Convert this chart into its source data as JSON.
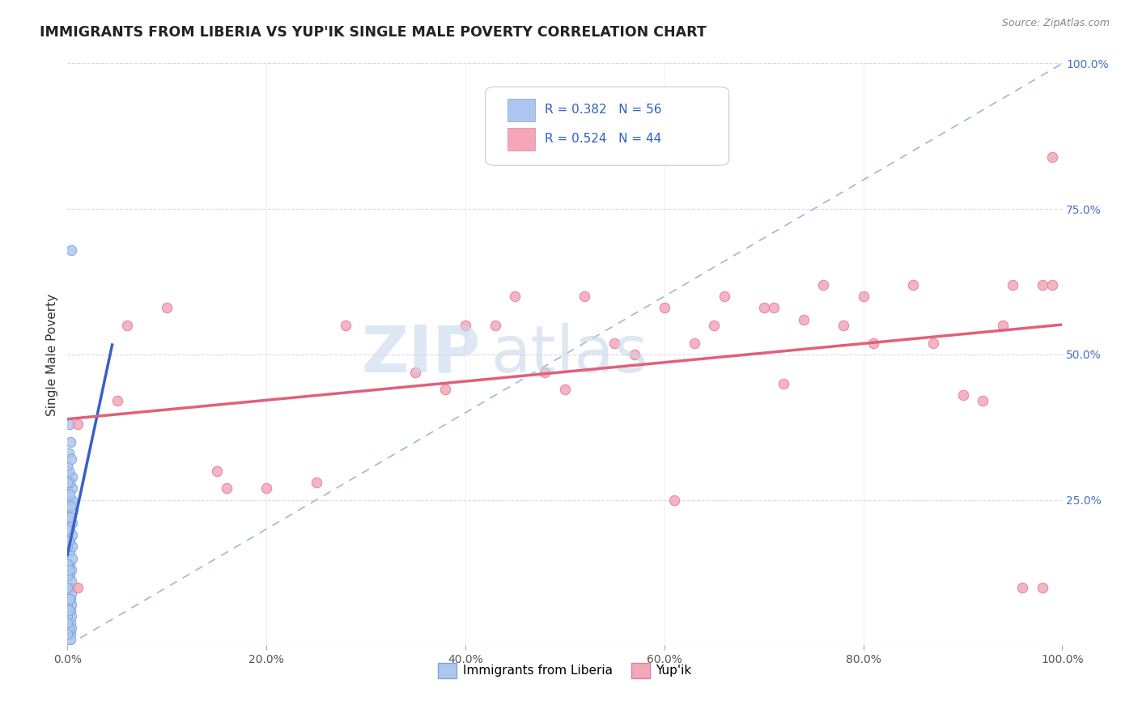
{
  "title": "IMMIGRANTS FROM LIBERIA VS YUP'IK SINGLE MALE POVERTY CORRELATION CHART",
  "source": "Source: ZipAtlas.com",
  "ylabel": "Single Male Poverty",
  "xlim": [
    0,
    1
  ],
  "ylim": [
    0,
    1
  ],
  "liberia_scatter": [
    [
      0.0,
      0.27
    ],
    [
      0.001,
      0.25
    ],
    [
      0.001,
      0.22
    ],
    [
      0.002,
      0.2
    ],
    [
      0.002,
      0.18
    ],
    [
      0.002,
      0.16
    ],
    [
      0.002,
      0.14
    ],
    [
      0.002,
      0.12
    ],
    [
      0.003,
      0.1
    ],
    [
      0.003,
      0.08
    ],
    [
      0.003,
      0.06
    ],
    [
      0.003,
      0.04
    ],
    [
      0.003,
      0.02
    ],
    [
      0.003,
      0.01
    ],
    [
      0.004,
      0.03
    ],
    [
      0.004,
      0.05
    ],
    [
      0.004,
      0.07
    ],
    [
      0.004,
      0.09
    ],
    [
      0.004,
      0.11
    ],
    [
      0.004,
      0.13
    ],
    [
      0.005,
      0.15
    ],
    [
      0.005,
      0.17
    ],
    [
      0.005,
      0.19
    ],
    [
      0.005,
      0.21
    ],
    [
      0.005,
      0.23
    ],
    [
      0.005,
      0.25
    ],
    [
      0.005,
      0.27
    ],
    [
      0.005,
      0.29
    ],
    [
      0.0,
      0.05
    ],
    [
      0.0,
      0.07
    ],
    [
      0.0,
      0.1
    ],
    [
      0.0,
      0.12
    ],
    [
      0.0,
      0.14
    ],
    [
      0.0,
      0.17
    ],
    [
      0.0,
      0.2
    ],
    [
      0.0,
      0.22
    ],
    [
      0.001,
      0.03
    ],
    [
      0.001,
      0.08
    ],
    [
      0.001,
      0.13
    ],
    [
      0.001,
      0.18
    ],
    [
      0.001,
      0.3
    ],
    [
      0.002,
      0.28
    ],
    [
      0.002,
      0.26
    ],
    [
      0.001,
      0.33
    ],
    [
      0.0,
      0.31
    ],
    [
      0.0,
      0.28
    ],
    [
      0.003,
      0.24
    ],
    [
      0.003,
      0.22
    ],
    [
      0.004,
      0.68
    ],
    [
      0.002,
      0.38
    ],
    [
      0.003,
      0.35
    ],
    [
      0.004,
      0.32
    ],
    [
      0.0,
      0.02
    ],
    [
      0.0,
      0.04
    ],
    [
      0.001,
      0.06
    ],
    [
      0.002,
      0.08
    ]
  ],
  "yupik_scatter": [
    [
      0.01,
      0.1
    ],
    [
      0.05,
      0.42
    ],
    [
      0.06,
      0.55
    ],
    [
      0.1,
      0.58
    ],
    [
      0.15,
      0.3
    ],
    [
      0.16,
      0.27
    ],
    [
      0.2,
      0.27
    ],
    [
      0.25,
      0.28
    ],
    [
      0.28,
      0.55
    ],
    [
      0.35,
      0.47
    ],
    [
      0.38,
      0.44
    ],
    [
      0.4,
      0.55
    ],
    [
      0.43,
      0.55
    ],
    [
      0.45,
      0.6
    ],
    [
      0.48,
      0.47
    ],
    [
      0.5,
      0.44
    ],
    [
      0.52,
      0.6
    ],
    [
      0.55,
      0.52
    ],
    [
      0.57,
      0.5
    ],
    [
      0.6,
      0.58
    ],
    [
      0.61,
      0.25
    ],
    [
      0.63,
      0.52
    ],
    [
      0.65,
      0.55
    ],
    [
      0.66,
      0.6
    ],
    [
      0.7,
      0.58
    ],
    [
      0.71,
      0.58
    ],
    [
      0.72,
      0.45
    ],
    [
      0.74,
      0.56
    ],
    [
      0.76,
      0.62
    ],
    [
      0.78,
      0.55
    ],
    [
      0.8,
      0.6
    ],
    [
      0.81,
      0.52
    ],
    [
      0.85,
      0.62
    ],
    [
      0.87,
      0.52
    ],
    [
      0.9,
      0.43
    ],
    [
      0.92,
      0.42
    ],
    [
      0.94,
      0.55
    ],
    [
      0.95,
      0.62
    ],
    [
      0.96,
      0.1
    ],
    [
      0.98,
      0.1
    ],
    [
      0.98,
      0.62
    ],
    [
      0.99,
      0.62
    ],
    [
      0.99,
      0.84
    ],
    [
      0.01,
      0.38
    ]
  ],
  "liberia_line_color": "#3a5fc8",
  "yupik_line_color": "#e0607a",
  "diagonal_line_color": "#a0b8d8",
  "scatter_liberia_color": "#aec6f0",
  "scatter_yupik_color": "#f4a7b9",
  "scatter_liberia_edge": "#7aa8d8",
  "scatter_yupik_edge": "#e08098",
  "background_color": "#ffffff",
  "grid_color": "#d8d8e8",
  "watermark_zip_color": "#c8d8ee",
  "watermark_atlas_color": "#c8d8e8"
}
